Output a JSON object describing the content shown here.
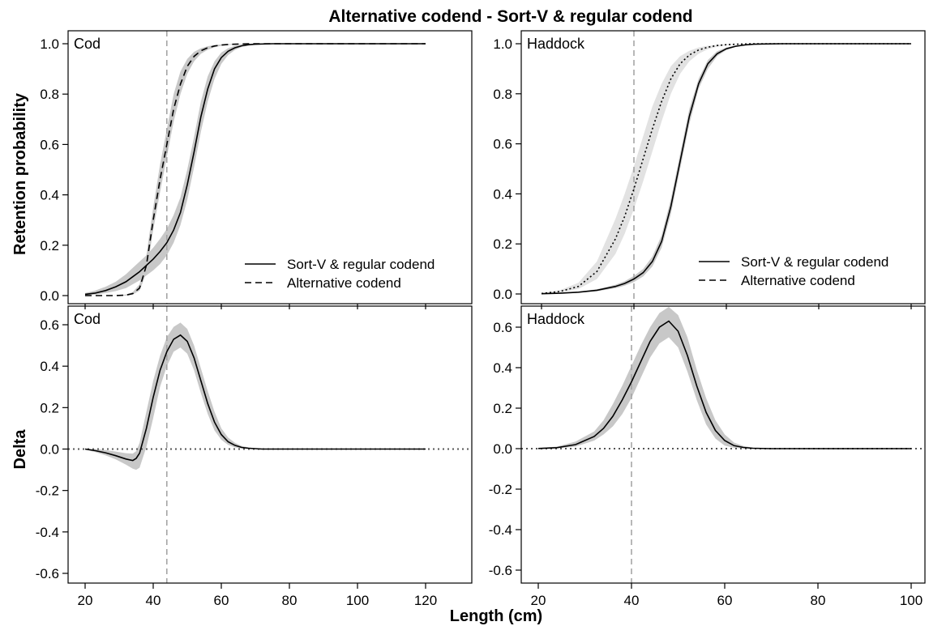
{
  "chart_data": {
    "title": "Alternative codend - Sort-V & regular codend",
    "xlabel": "Length (cm)",
    "ylabel_top": "Retention probability",
    "ylabel_bottom": "Delta",
    "legend": [
      "Sort-V & regular codend",
      "Alternative codend"
    ],
    "colors": {
      "band": "#c8c8c8",
      "band_light": "#e2e2e2",
      "ref_line": "#a0a0a0",
      "line": "#000000"
    },
    "panels": [
      {
        "id": "cod-retention",
        "type": "line",
        "label": "Cod",
        "xlim": [
          20,
          120
        ],
        "ylim": [
          0,
          1
        ],
        "xticks": [
          20,
          40,
          60,
          80,
          100,
          120
        ],
        "yticks": [
          0.0,
          0.2,
          0.4,
          0.6,
          0.8,
          1.0
        ],
        "ytick_labels": [
          "0.0",
          "0.2",
          "0.4",
          "0.6",
          "0.8",
          "1.0"
        ],
        "show_xtick_labels": false,
        "vline": 44,
        "legend_position": "bottom-right",
        "x": [
          20,
          23,
          26,
          29,
          32,
          34,
          36,
          38,
          40,
          42,
          44,
          46,
          48,
          50,
          52,
          54,
          56,
          58,
          60,
          62,
          64,
          66,
          68,
          70,
          75,
          80,
          90,
          100,
          110,
          120
        ],
        "series": [
          {
            "name": "Sort-V & regular codend",
            "dash": "solid",
            "values": [
              0.005,
              0.01,
              0.02,
              0.035,
              0.055,
              0.075,
              0.095,
              0.12,
              0.145,
              0.175,
              0.21,
              0.26,
              0.33,
              0.44,
              0.57,
              0.71,
              0.82,
              0.9,
              0.945,
              0.97,
              0.984,
              0.992,
              0.996,
              0.998,
              1.0,
              1.0,
              1.0,
              1.0,
              1.0,
              1.0
            ],
            "lower": [
              0.002,
              0.004,
              0.01,
              0.018,
              0.03,
              0.045,
              0.06,
              0.08,
              0.1,
              0.125,
              0.16,
              0.21,
              0.28,
              0.38,
              0.51,
              0.65,
              0.77,
              0.86,
              0.92,
              0.955,
              0.975,
              0.987,
              0.993,
              0.996,
              0.999,
              1.0,
              1.0,
              1.0,
              1.0,
              1.0
            ],
            "upper": [
              0.01,
              0.02,
              0.035,
              0.055,
              0.085,
              0.11,
              0.135,
              0.16,
              0.19,
              0.225,
              0.265,
              0.32,
              0.39,
              0.5,
              0.63,
              0.77,
              0.87,
              0.93,
              0.965,
              0.982,
              0.992,
              0.996,
              0.998,
              0.999,
              1.0,
              1.0,
              1.0,
              1.0,
              1.0,
              1.0
            ]
          },
          {
            "name": "Alternative codend",
            "dash": "dashed",
            "values": [
              0.0,
              0.0,
              0.0,
              0.0,
              0.002,
              0.008,
              0.03,
              0.12,
              0.3,
              0.46,
              0.6,
              0.74,
              0.84,
              0.91,
              0.95,
              0.972,
              0.984,
              0.991,
              0.995,
              0.997,
              0.998,
              0.999,
              1.0,
              1.0,
              1.0,
              1.0,
              1.0,
              1.0,
              1.0,
              1.0
            ],
            "lower": [
              0.0,
              0.0,
              0.0,
              0.0,
              0.0,
              0.004,
              0.02,
              0.09,
              0.26,
              0.41,
              0.55,
              0.69,
              0.8,
              0.88,
              0.93,
              0.96,
              0.976,
              0.986,
              0.992,
              0.995,
              0.997,
              0.998,
              0.999,
              1.0,
              1.0,
              1.0,
              1.0,
              1.0,
              1.0,
              1.0
            ],
            "upper": [
              0.0,
              0.0,
              0.0,
              0.001,
              0.004,
              0.014,
              0.045,
              0.16,
              0.35,
              0.52,
              0.66,
              0.8,
              0.89,
              0.94,
              0.968,
              0.982,
              0.99,
              0.995,
              0.997,
              0.998,
              0.999,
              1.0,
              1.0,
              1.0,
              1.0,
              1.0,
              1.0,
              1.0,
              1.0,
              1.0
            ]
          }
        ]
      },
      {
        "id": "haddock-retention",
        "type": "line",
        "label": "Haddock",
        "xlim": [
          20,
          100
        ],
        "ylim": [
          0,
          1
        ],
        "xticks": [
          20,
          40,
          60,
          80,
          100
        ],
        "yticks": [
          0.0,
          0.2,
          0.4,
          0.6,
          0.8,
          1.0
        ],
        "ytick_labels": [
          "0.0",
          "0.2",
          "0.4",
          "0.6",
          "0.8",
          "1.0"
        ],
        "show_xtick_labels": false,
        "vline": 40,
        "legend_position": "bottom-right",
        "x": [
          20,
          24,
          28,
          32,
          36,
          38,
          40,
          42,
          44,
          46,
          48,
          50,
          52,
          54,
          56,
          58,
          60,
          62,
          64,
          66,
          68,
          72,
          76,
          80,
          90,
          100
        ],
        "series": [
          {
            "name": "Sort-V & regular codend",
            "dash": "solid",
            "values": [
              0.001,
              0.003,
              0.007,
              0.015,
              0.03,
              0.042,
              0.06,
              0.085,
              0.13,
              0.21,
              0.35,
              0.53,
              0.71,
              0.84,
              0.92,
              0.96,
              0.98,
              0.99,
              0.995,
              0.998,
              0.999,
              1.0,
              1.0,
              1.0,
              1.0,
              1.0
            ],
            "lower": [
              0.0005,
              0.002,
              0.005,
              0.011,
              0.023,
              0.033,
              0.048,
              0.07,
              0.11,
              0.185,
              0.32,
              0.5,
              0.68,
              0.82,
              0.9,
              0.95,
              0.975,
              0.987,
              0.993,
              0.997,
              0.998,
              1.0,
              1.0,
              1.0,
              1.0,
              1.0
            ],
            "upper": [
              0.002,
              0.004,
              0.009,
              0.019,
              0.037,
              0.051,
              0.072,
              0.1,
              0.15,
              0.235,
              0.38,
              0.56,
              0.74,
              0.86,
              0.935,
              0.97,
              0.985,
              0.993,
              0.997,
              0.999,
              1.0,
              1.0,
              1.0,
              1.0,
              1.0,
              1.0
            ]
          },
          {
            "name": "Alternative codend",
            "dash": "dotted",
            "values": [
              0.002,
              0.01,
              0.03,
              0.09,
              0.22,
              0.31,
              0.42,
              0.54,
              0.66,
              0.77,
              0.86,
              0.92,
              0.955,
              0.975,
              0.986,
              0.993,
              0.996,
              0.998,
              0.999,
              1.0,
              1.0,
              1.0,
              1.0,
              1.0,
              1.0,
              1.0
            ],
            "lower": [
              0.001,
              0.006,
              0.02,
              0.06,
              0.16,
              0.24,
              0.34,
              0.45,
              0.57,
              0.69,
              0.8,
              0.88,
              0.93,
              0.96,
              0.978,
              0.988,
              0.994,
              0.997,
              0.998,
              0.999,
              1.0,
              1.0,
              1.0,
              1.0,
              1.0,
              1.0
            ],
            "upper": [
              0.004,
              0.015,
              0.045,
              0.13,
              0.3,
              0.4,
              0.51,
              0.63,
              0.75,
              0.84,
              0.91,
              0.95,
              0.972,
              0.985,
              0.992,
              0.996,
              0.998,
              0.999,
              1.0,
              1.0,
              1.0,
              1.0,
              1.0,
              1.0,
              1.0,
              1.0
            ]
          }
        ]
      },
      {
        "id": "cod-delta",
        "type": "line",
        "label": "Cod",
        "xlim": [
          20,
          120
        ],
        "ylim": [
          -0.6,
          0.6
        ],
        "xticks": [
          20,
          40,
          60,
          80,
          100,
          120
        ],
        "xtick_labels": [
          "20",
          "40",
          "60",
          "80",
          "100",
          "120"
        ],
        "yticks": [
          -0.6,
          -0.4,
          -0.2,
          0.0,
          0.2,
          0.4,
          0.6
        ],
        "ytick_labels": [
          "-0.6",
          "-0.4",
          "-0.2",
          "0.0",
          "0.2",
          "0.4",
          "0.6"
        ],
        "show_xtick_labels": true,
        "vline": 44,
        "hline": 0,
        "x": [
          20,
          23,
          26,
          29,
          32,
          34,
          35,
          36,
          38,
          40,
          42,
          44,
          46,
          48,
          50,
          52,
          54,
          56,
          58,
          60,
          62,
          64,
          66,
          68,
          70,
          72,
          80,
          90,
          100,
          110,
          120
        ],
        "series": [
          {
            "name": "Delta",
            "dash": "solid",
            "values": [
              0.0,
              -0.008,
              -0.018,
              -0.032,
              -0.048,
              -0.055,
              -0.045,
              -0.02,
              0.1,
              0.25,
              0.38,
              0.47,
              0.53,
              0.55,
              0.52,
              0.44,
              0.33,
              0.22,
              0.13,
              0.07,
              0.035,
              0.018,
              0.008,
              0.004,
              0.002,
              0.0,
              0.0,
              0.0,
              0.0,
              0.0,
              0.0
            ],
            "lower": [
              -0.003,
              -0.015,
              -0.03,
              -0.05,
              -0.075,
              -0.095,
              -0.1,
              -0.09,
              0.01,
              0.15,
              0.3,
              0.4,
              0.47,
              0.49,
              0.46,
              0.38,
              0.27,
              0.17,
              0.09,
              0.045,
              0.02,
              0.008,
              0.003,
              0.001,
              0.0,
              0.0,
              0.0,
              0.0,
              0.0,
              0.0,
              0.0
            ],
            "upper": [
              0.002,
              0.0,
              -0.005,
              -0.012,
              -0.02,
              -0.022,
              -0.01,
              0.03,
              0.18,
              0.33,
              0.45,
              0.54,
              0.59,
              0.61,
              0.58,
              0.5,
              0.39,
              0.28,
              0.18,
              0.1,
              0.055,
              0.03,
              0.015,
              0.008,
              0.004,
              0.002,
              0.0,
              0.0,
              0.0,
              0.0,
              0.0
            ]
          }
        ]
      },
      {
        "id": "haddock-delta",
        "type": "line",
        "label": "Haddock",
        "xlim": [
          20,
          100
        ],
        "ylim": [
          -0.7,
          0.7
        ],
        "xticks": [
          20,
          40,
          60,
          80,
          100
        ],
        "xtick_labels": [
          "20",
          "40",
          "60",
          "80",
          "100"
        ],
        "yticks": [
          -0.6,
          -0.4,
          -0.2,
          0.0,
          0.2,
          0.4,
          0.6
        ],
        "ytick_labels": [
          "-0.6",
          "-0.4",
          "-0.2",
          "0.0",
          "0.2",
          "0.4",
          "0.6"
        ],
        "show_xtick_labels": true,
        "vline": 40,
        "hline": 0,
        "x": [
          20,
          24,
          28,
          32,
          34,
          36,
          38,
          40,
          42,
          44,
          46,
          48,
          50,
          52,
          54,
          56,
          58,
          60,
          62,
          64,
          66,
          70,
          80,
          90,
          100
        ],
        "series": [
          {
            "name": "Delta",
            "dash": "solid",
            "values": [
              0.001,
              0.005,
              0.02,
              0.06,
              0.1,
              0.16,
              0.24,
              0.33,
              0.43,
              0.53,
              0.6,
              0.63,
              0.58,
              0.46,
              0.31,
              0.18,
              0.09,
              0.04,
              0.015,
              0.006,
              0.002,
              0.0,
              0.0,
              0.0,
              0.0
            ],
            "lower": [
              0.0,
              0.002,
              0.01,
              0.04,
              0.07,
              0.11,
              0.17,
              0.25,
              0.35,
              0.45,
              0.52,
              0.55,
              0.5,
              0.38,
              0.24,
              0.12,
              0.05,
              0.015,
              0.004,
              0.001,
              0.0,
              0.0,
              0.0,
              0.0,
              0.0
            ],
            "upper": [
              0.003,
              0.01,
              0.035,
              0.085,
              0.14,
              0.22,
              0.31,
              0.41,
              0.51,
              0.6,
              0.67,
              0.7,
              0.66,
              0.55,
              0.39,
              0.25,
              0.14,
              0.07,
              0.03,
              0.013,
              0.005,
              0.001,
              0.0,
              0.0,
              0.0
            ]
          }
        ]
      }
    ]
  }
}
